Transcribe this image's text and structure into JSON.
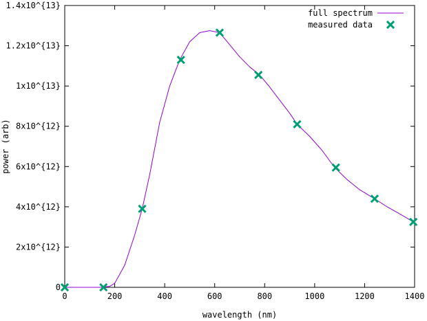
{
  "chart_data": {
    "type": "line",
    "title": "",
    "xlabel": "wavelength (nm)",
    "ylabel": "power (arb)",
    "xlim": [
      0,
      1400
    ],
    "ylim": [
      0,
      14000000000000
    ],
    "x_ticks": [
      {
        "value": 0,
        "label": "0"
      },
      {
        "value": 200,
        "label": "200"
      },
      {
        "value": 400,
        "label": "400"
      },
      {
        "value": 600,
        "label": "600"
      },
      {
        "value": 800,
        "label": "800"
      },
      {
        "value": 1000,
        "label": "1000"
      },
      {
        "value": 1200,
        "label": "1200"
      },
      {
        "value": 1400,
        "label": "1400"
      }
    ],
    "y_ticks": [
      {
        "value": 0,
        "label": "0"
      },
      {
        "value": 2000000000000,
        "label": "2x10^{12}"
      },
      {
        "value": 4000000000000,
        "label": "4x10^{12}"
      },
      {
        "value": 6000000000000,
        "label": "6x10^{12}"
      },
      {
        "value": 8000000000000,
        "label": "8x10^{12}"
      },
      {
        "value": 10000000000000,
        "label": "1x10^{13}"
      },
      {
        "value": 12000000000000,
        "label": "1.2x10^{13}"
      },
      {
        "value": 14000000000000,
        "label": "1.4x10^{13}"
      }
    ],
    "grid": false,
    "legend_position": "top-right",
    "series": [
      {
        "name": "full spectrum",
        "kind": "line",
        "color": "#9400d3",
        "x": [
          0,
          150,
          180,
          200,
          240,
          280,
          310,
          340,
          380,
          420,
          460,
          500,
          540,
          580,
          620,
          660,
          700,
          740,
          780,
          820,
          860,
          900,
          930,
          980,
          1030,
          1080,
          1130,
          1180,
          1240,
          1290,
          1340,
          1395
        ],
        "y": [
          0,
          0,
          50000000000,
          200000000000,
          1100000000000,
          2600000000000,
          3900000000000,
          5600000000000,
          8200000000000,
          10000000000000,
          11300000000000,
          12200000000000,
          12650000000000,
          12750000000000,
          12650000000000,
          12050000000000,
          11450000000000,
          10950000000000,
          10550000000000,
          9950000000000,
          9300000000000,
          8650000000000,
          8100000000000,
          7500000000000,
          6800000000000,
          5950000000000,
          5350000000000,
          4850000000000,
          4400000000000,
          4000000000000,
          3650000000000,
          3250000000000
        ]
      },
      {
        "name": "measured data",
        "kind": "points",
        "color": "#009e73",
        "x": [
          0,
          155,
          310,
          465,
          620,
          775,
          930,
          1085,
          1240,
          1395
        ],
        "y": [
          0,
          0,
          3900000000000,
          11300000000000,
          12650000000000,
          10550000000000,
          8100000000000,
          5950000000000,
          4400000000000,
          3250000000000
        ]
      }
    ]
  }
}
